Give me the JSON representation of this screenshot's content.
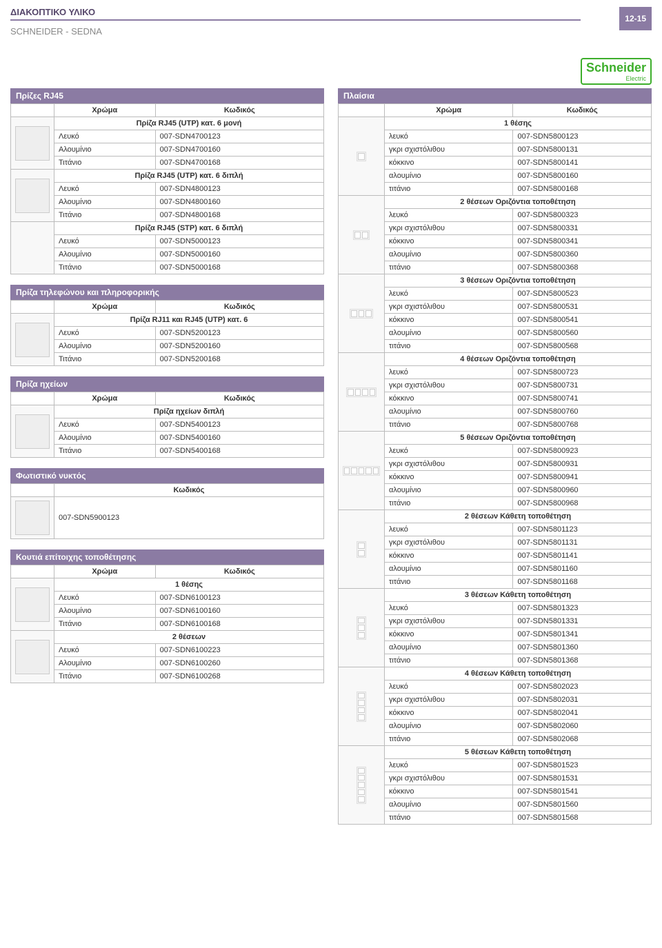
{
  "page": {
    "title": "ΔΙΑΚΟΠΤΙΚΟ ΥΛΙΚΟ",
    "subtitle": "SCHNEIDER - SEDNA",
    "num": "12-15",
    "brand": "Schneider",
    "brand_sub": "Electric"
  },
  "hdr": {
    "color": "Χρώμα",
    "code": "Κωδικός"
  },
  "left": [
    {
      "title": "Πρίζες RJ45",
      "blocks": [
        {
          "grp": "Πρίζα RJ45 (UTP) κατ. 6 μονή",
          "img": true,
          "rows": [
            [
              "Λευκό",
              "007-SDN4700123"
            ],
            [
              "Αλουμίνιο",
              "007-SDN4700160"
            ],
            [
              "Τιτάνιο",
              "007-SDN4700168"
            ]
          ]
        },
        {
          "grp": "Πρίζα RJ45 (UTP) κατ. 6 διπλή",
          "img": true,
          "rows": [
            [
              "Λευκό",
              "007-SDN4800123"
            ],
            [
              "Αλουμίνιο",
              "007-SDN4800160"
            ],
            [
              "Τιτάνιο",
              "007-SDN4800168"
            ]
          ]
        },
        {
          "grp": "Πρίζα RJ45 (STP) κατ. 6 διπλή",
          "rows": [
            [
              "Λευκό",
              "007-SDN5000123"
            ],
            [
              "Αλουμίνιο",
              "007-SDN5000160"
            ],
            [
              "Τιτάνιο",
              "007-SDN5000168"
            ]
          ]
        }
      ]
    },
    {
      "title": "Πρίζα τηλεφώνου και πληροφορικής",
      "blocks": [
        {
          "grp": "Πρίζα RJ11 και RJ45 (UTP) κατ. 6",
          "img": true,
          "rows": [
            [
              "Λευκό",
              "007-SDN5200123"
            ],
            [
              "Αλουμίνιο",
              "007-SDN5200160"
            ],
            [
              "Τιτάνιο",
              "007-SDN5200168"
            ]
          ]
        }
      ]
    },
    {
      "title": "Πρίζα ηχείων",
      "blocks": [
        {
          "grp": "Πρίζα ηχείων διπλή",
          "img": true,
          "rows": [
            [
              "Λευκό",
              "007-SDN5400123"
            ],
            [
              "Αλουμίνιο",
              "007-SDN5400160"
            ],
            [
              "Τιτάνιο",
              "007-SDN5400168"
            ]
          ]
        }
      ]
    },
    {
      "title": "Φωτιστικό νυκτός",
      "single_code": "007-SDN5900123",
      "img": true
    },
    {
      "title": "Κουτιά επίτοιχης τοποθέτησης",
      "blocks": [
        {
          "grp": "1 θέσης",
          "img": true,
          "rows": [
            [
              "Λευκό",
              "007-SDN6100123"
            ],
            [
              "Αλουμίνιο",
              "007-SDN6100160"
            ],
            [
              "Τιτάνιο",
              "007-SDN6100168"
            ]
          ]
        },
        {
          "grp": "2 θέσεων",
          "img": true,
          "rows": [
            [
              "Λευκό",
              "007-SDN6100223"
            ],
            [
              "Αλουμίνιο",
              "007-SDN6100260"
            ],
            [
              "Τιτάνιο",
              "007-SDN6100268"
            ]
          ]
        }
      ]
    }
  ],
  "right": {
    "title": "Πλαίσια",
    "groups": [
      {
        "name": "1 θέσης",
        "frame": 1,
        "dir": "h",
        "rows": [
          [
            "λευκό",
            "007-SDN5800123"
          ],
          [
            "γκρι σχιστόλιθου",
            "007-SDN5800131"
          ],
          [
            "κόκκινο",
            "007-SDN5800141"
          ],
          [
            "αλουμίνιο",
            "007-SDN5800160"
          ],
          [
            "τιτάνιο",
            "007-SDN5800168"
          ]
        ]
      },
      {
        "name": "2 θέσεων Οριζόντια τοποθέτηση",
        "frame": 2,
        "dir": "h",
        "rows": [
          [
            "λευκό",
            "007-SDN5800323"
          ],
          [
            "γκρι σχιστόλιθου",
            "007-SDN5800331"
          ],
          [
            "κόκκινο",
            "007-SDN5800341"
          ],
          [
            "αλουμίνιο",
            "007-SDN5800360"
          ],
          [
            "τιτάνιο",
            "007-SDN5800368"
          ]
        ]
      },
      {
        "name": "3 θέσεων Οριζόντια τοποθέτηση",
        "frame": 3,
        "dir": "h",
        "rows": [
          [
            "λευκό",
            "007-SDN5800523"
          ],
          [
            "γκρι σχιστόλιθου",
            "007-SDN5800531"
          ],
          [
            "κόκκινο",
            "007-SDN5800541"
          ],
          [
            "αλουμίνιο",
            "007-SDN5800560"
          ],
          [
            "τιτάνιο",
            "007-SDN5800568"
          ]
        ]
      },
      {
        "name": "4 θέσεων Οριζόντια τοποθέτηση",
        "frame": 4,
        "dir": "h",
        "rows": [
          [
            "λευκό",
            "007-SDN5800723"
          ],
          [
            "γκρι σχιστόλιθου",
            "007-SDN5800731"
          ],
          [
            "κόκκινο",
            "007-SDN5800741"
          ],
          [
            "αλουμίνιο",
            "007-SDN5800760"
          ],
          [
            "τιτάνιο",
            "007-SDN5800768"
          ]
        ]
      },
      {
        "name": "5 θέσεων Οριζόντια τοποθέτηση",
        "frame": 5,
        "dir": "h",
        "rows": [
          [
            "λευκό",
            "007-SDN5800923"
          ],
          [
            "γκρι σχιστόλιθου",
            "007-SDN5800931"
          ],
          [
            "κόκκινο",
            "007-SDN5800941"
          ],
          [
            "αλουμίνιο",
            "007-SDN5800960"
          ],
          [
            "τιτάνιο",
            "007-SDN5800968"
          ]
        ]
      },
      {
        "name": "2 θέσεων Κάθετη τοποθέτηση",
        "frame": 2,
        "dir": "v",
        "rows": [
          [
            "λευκό",
            "007-SDN5801123"
          ],
          [
            "γκρι σχιστόλιθου",
            "007-SDN5801131"
          ],
          [
            "κόκκινο",
            "007-SDN5801141"
          ],
          [
            "αλουμίνιο",
            "007-SDN5801160"
          ],
          [
            "τιτάνιο",
            "007-SDN5801168"
          ]
        ]
      },
      {
        "name": "3 θέσεων Κάθετη τοποθέτηση",
        "frame": 3,
        "dir": "v",
        "rows": [
          [
            "λευκό",
            "007-SDN5801323"
          ],
          [
            "γκρι σχιστόλιθου",
            "007-SDN5801331"
          ],
          [
            "κόκκινο",
            "007-SDN5801341"
          ],
          [
            "αλουμίνιο",
            "007-SDN5801360"
          ],
          [
            "τιτάνιο",
            "007-SDN5801368"
          ]
        ]
      },
      {
        "name": "4 θέσεων Κάθετη τοποθέτηση",
        "frame": 4,
        "dir": "v",
        "rows": [
          [
            "λευκό",
            "007-SDN5802023"
          ],
          [
            "γκρι σχιστόλιθου",
            "007-SDN5802031"
          ],
          [
            "κόκκινο",
            "007-SDN5802041"
          ],
          [
            "αλουμίνιο",
            "007-SDN5802060"
          ],
          [
            "τιτάνιο",
            "007-SDN5802068"
          ]
        ]
      },
      {
        "name": "5 θέσεων Κάθετη τοποθέτηση",
        "frame": 5,
        "dir": "v",
        "rows": [
          [
            "λευκό",
            "007-SDN5801523"
          ],
          [
            "γκρι σχιστόλιθου",
            "007-SDN5801531"
          ],
          [
            "κόκκινο",
            "007-SDN5801541"
          ],
          [
            "αλουμίνιο",
            "007-SDN5801560"
          ],
          [
            "τιτάνιο",
            "007-SDN5801568"
          ]
        ]
      }
    ]
  }
}
